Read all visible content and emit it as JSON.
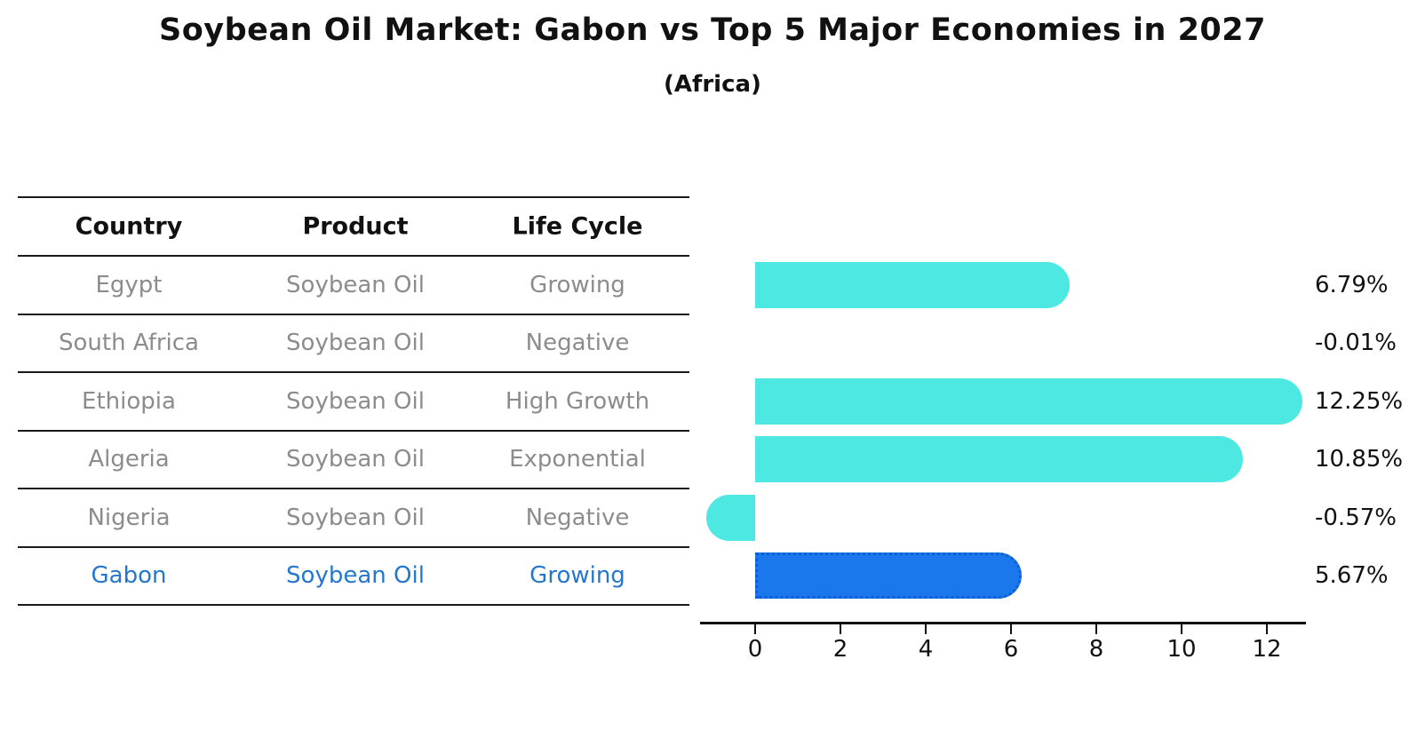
{
  "title": "Soybean Oil Market: Gabon vs Top 5 Major Economies in 2027",
  "subtitle": "(Africa)",
  "table": {
    "headers": [
      "Country",
      "Product",
      "Life Cycle"
    ],
    "rows": [
      {
        "country": "Egypt",
        "product": "Soybean Oil",
        "life_cycle": "Growing"
      },
      {
        "country": "South Africa",
        "product": "Soybean Oil",
        "life_cycle": "Negative"
      },
      {
        "country": "Ethiopia",
        "product": "Soybean Oil",
        "life_cycle": "High Growth"
      },
      {
        "country": "Algeria",
        "product": "Soybean Oil",
        "life_cycle": "Exponential"
      },
      {
        "country": "Nigeria",
        "product": "Soybean Oil",
        "life_cycle": "Negative"
      },
      {
        "country": "Gabon",
        "product": "Soybean Oil",
        "life_cycle": "Growing"
      }
    ]
  },
  "chart_data": {
    "type": "bar",
    "orientation": "horizontal",
    "categories": [
      "Egypt",
      "South Africa",
      "Ethiopia",
      "Algeria",
      "Nigeria",
      "Gabon"
    ],
    "values": [
      6.79,
      -0.01,
      12.25,
      10.85,
      -0.57,
      5.67
    ],
    "value_labels": [
      "6.79%",
      "-0.01%",
      "12.25%",
      "10.85%",
      "-0.57%",
      "5.67%"
    ],
    "x_ticks": [
      0,
      2,
      4,
      6,
      8,
      10,
      12
    ],
    "xlim": [
      -1.3,
      13
    ],
    "grid": false,
    "legend": false,
    "highlight_category": "Gabon",
    "highlight_index": 5
  },
  "colors": {
    "bar": "#4DE8E2",
    "highlight_bar": "#1B78EC",
    "highlight_border": "#0D5ED6",
    "highlight_text": "#2577CE",
    "row_text": "#8C8C8C",
    "header_text": "#111111",
    "line": "#1a1a1a",
    "axis_text": "#111111"
  }
}
